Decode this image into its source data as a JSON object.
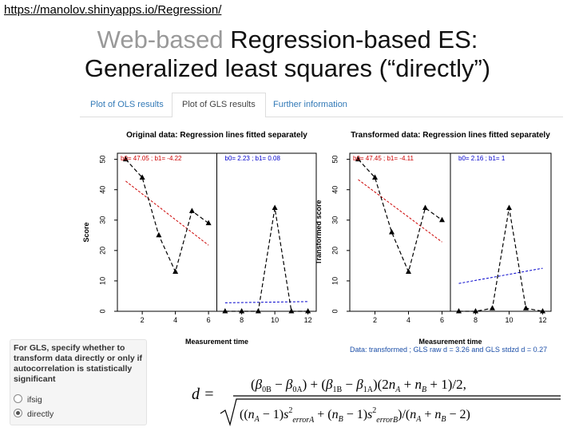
{
  "slide": {
    "url": "https://manolov.shinyapps.io/Regression/",
    "title_grey": "Web-based",
    "title_rest": " Regression-based ES:",
    "title_line2": "Generalized least squares (“directly”)"
  },
  "tabs": [
    {
      "label": "Plot of OLS results",
      "active": false
    },
    {
      "label": "Plot of GLS results",
      "active": true
    },
    {
      "label": "Further information",
      "active": false
    }
  ],
  "chart_data": [
    {
      "type": "line",
      "title": "Original data: Regression lines fitted separately",
      "xlabel": "Measurement time",
      "ylabel": "Score",
      "xlim": [
        0.5,
        12.5
      ],
      "ylim": [
        0,
        52
      ],
      "xticks": [
        2,
        4,
        6,
        8,
        10,
        12
      ],
      "yticks": [
        0,
        10,
        20,
        30,
        40,
        50
      ],
      "phase_divider_x": 6.5,
      "phaseA": {
        "label": "b0= 47.05 ; b1= -4.22",
        "x": [
          1,
          2,
          3,
          4,
          5,
          6
        ],
        "y": [
          50,
          44,
          25,
          13,
          33,
          29
        ],
        "fit": {
          "b0": 47.05,
          "b1": -4.22,
          "color": "#cc0000"
        }
      },
      "phaseB": {
        "label": "b0= 2.23 ; b1= 0.08",
        "x": [
          7,
          8,
          9,
          10,
          11,
          12
        ],
        "y": [
          0,
          0,
          0,
          34,
          0,
          0
        ],
        "fit": {
          "b0": 2.23,
          "b1": 0.08,
          "color": "#0000cc"
        }
      }
    },
    {
      "type": "line",
      "title": "Transformed data: Regression lines fitted separately",
      "xlabel": "Measurement time",
      "ylabel": "Transformed score",
      "xlim": [
        0.5,
        12.5
      ],
      "ylim": [
        0,
        52
      ],
      "xticks": [
        2,
        4,
        6,
        8,
        10,
        12
      ],
      "yticks": [
        0,
        10,
        20,
        30,
        40,
        50
      ],
      "phase_divider_x": 6.5,
      "phaseA": {
        "label": "b0= 47.45 ; b1= -4.11",
        "x": [
          1,
          2,
          3,
          4,
          5,
          6
        ],
        "y": [
          50,
          44,
          26,
          13,
          34,
          30
        ],
        "fit": {
          "b0": 47.45,
          "b1": -4.11,
          "color": "#cc0000"
        }
      },
      "phaseB": {
        "label": "b0= 2.16 ; b1= 1",
        "x": [
          7,
          8,
          9,
          10,
          11,
          12
        ],
        "y": [
          0,
          0,
          1,
          34,
          1,
          0
        ],
        "fit": {
          "b0": 2.16,
          "b1": 1,
          "color": "#0000cc"
        }
      }
    }
  ],
  "gls_note": "Data: transformed ; GLS raw d = 3.26 and GLS stdzd d = 0.27",
  "sidebar": {
    "label": "For GLS, specify whether to transform data directly or only if autocorrelation is statistically significant",
    "options": [
      {
        "label": "ifsig",
        "checked": false
      },
      {
        "label": "directly",
        "checked": true
      }
    ]
  }
}
